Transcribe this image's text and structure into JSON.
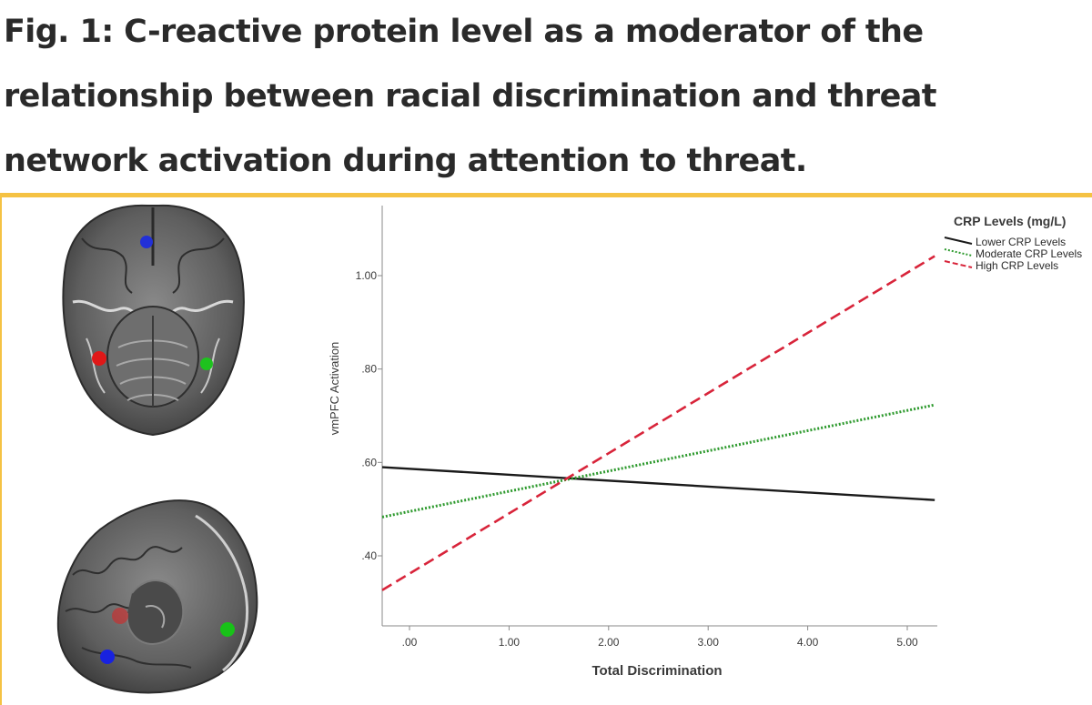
{
  "figure": {
    "caption": "Fig. 1: C-reactive protein level as a moderator of the relationship between racial discrimination and threat network activation during attention to threat.",
    "accent_color": "#f5c243"
  },
  "brain_images": {
    "markers": [
      {
        "view": "axial",
        "color": "#2230d8"
      },
      {
        "view": "axial",
        "color": "#e01818"
      },
      {
        "view": "axial",
        "color": "#1ec21e"
      },
      {
        "view": "sagittal",
        "color": "#e02020"
      },
      {
        "view": "sagittal",
        "color": "#18c218"
      },
      {
        "view": "sagittal",
        "color": "#1822e0"
      }
    ]
  },
  "chart_data": {
    "type": "line",
    "xlabel": "Total Discrimination",
    "ylabel": "vmPFC Activation",
    "xlim": [
      -0.3,
      5.2
    ],
    "ylim": [
      0.25,
      1.15
    ],
    "x_ticks": [
      0,
      1,
      2,
      3,
      4,
      5
    ],
    "x_tick_labels": [
      ".00",
      "1.00",
      "2.00",
      "3.00",
      "4.00",
      "5.00"
    ],
    "y_ticks": [
      0.4,
      0.6,
      0.8,
      1.0
    ],
    "y_tick_labels": [
      ".40",
      ".60",
      ".80",
      "1.00"
    ],
    "legend_title": "CRP Levels (mg/L)",
    "legend_position": "top-right",
    "grid": false,
    "series": [
      {
        "name": "Lower CRP Levels",
        "color": "#1a1a1a",
        "style": "solid",
        "x": [
          0,
          5.55
        ],
        "y": [
          0.586,
          0.516
        ]
      },
      {
        "name": "Moderate CRP Levels",
        "color": "#2e9a2e",
        "style": "dotted",
        "x": [
          0,
          5.55
        ],
        "y": [
          0.496,
          0.735
        ]
      },
      {
        "name": "High CRP Levels",
        "color": "#d8243a",
        "style": "dashed",
        "x": [
          0,
          5.55
        ],
        "y": [
          0.365,
          1.077
        ]
      }
    ]
  }
}
